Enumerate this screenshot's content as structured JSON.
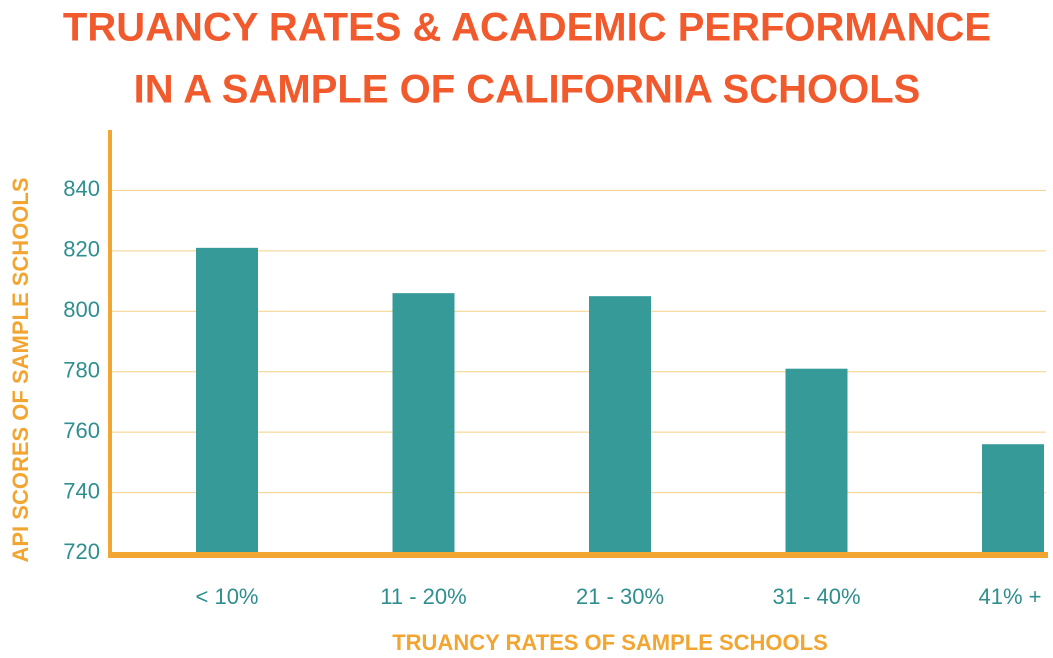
{
  "chart_data": {
    "type": "bar",
    "title": [
      "TRUANCY RATES & ACADEMIC PERFORMANCE",
      "IN A SAMPLE OF CALIFORNIA SCHOOLS"
    ],
    "x_label": "TRUANCY RATES OF SAMPLE SCHOOLS",
    "y_label": "API SCORES OF SAMPLE SCHOOLS",
    "categories": [
      "< 10%",
      "11 - 20%",
      "21 - 30%",
      "31 - 40%",
      "41% +"
    ],
    "values": [
      821,
      806,
      805,
      781,
      756
    ],
    "color": "#359a98",
    "ylim": [
      720,
      860
    ],
    "yticks": [
      720,
      740,
      760,
      780,
      800,
      820,
      840
    ],
    "grid": true
  }
}
